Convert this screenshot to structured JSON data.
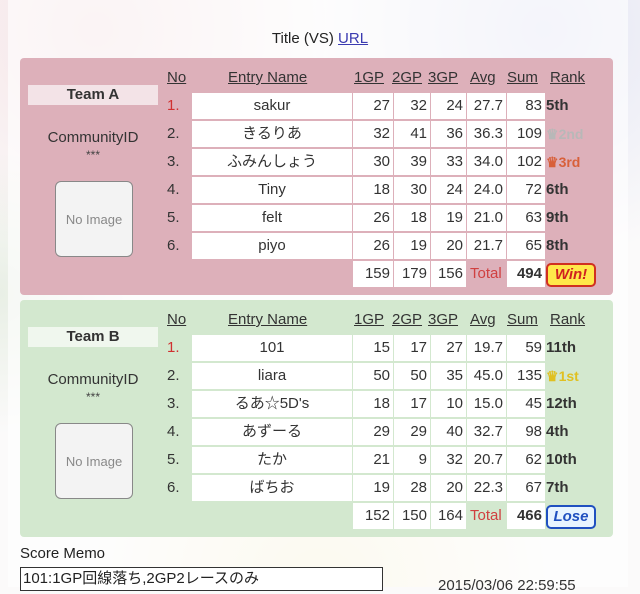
{
  "title": {
    "text": "Title (VS)",
    "link": "URL"
  },
  "headers": {
    "no": "No",
    "name": "Entry Name",
    "gp1": "1GP",
    "gp2": "2GP",
    "gp3": "3GP",
    "avg": "Avg",
    "sum": "Sum",
    "rank": "Rank"
  },
  "teams": [
    {
      "label": "Team A",
      "community": "CommunityID",
      "stars": "***",
      "image": "No Image",
      "color": "#ddb0ba",
      "rows": [
        {
          "no": "1.",
          "name": "sakur",
          "gp1": "27",
          "gp2": "32",
          "gp3": "24",
          "avg": "27.7",
          "sum": "83",
          "rank": "5th"
        },
        {
          "no": "2.",
          "name": "きるりあ",
          "gp1": "32",
          "gp2": "41",
          "gp3": "36",
          "avg": "36.3",
          "sum": "109",
          "rank": "2nd",
          "medal": "silver"
        },
        {
          "no": "3.",
          "name": "ふみんしょう",
          "gp1": "30",
          "gp2": "39",
          "gp3": "33",
          "avg": "34.0",
          "sum": "102",
          "rank": "3rd",
          "medal": "bronze"
        },
        {
          "no": "4.",
          "name": "Tiny",
          "gp1": "18",
          "gp2": "30",
          "gp3": "24",
          "avg": "24.0",
          "sum": "72",
          "rank": "6th"
        },
        {
          "no": "5.",
          "name": "felt",
          "gp1": "26",
          "gp2": "18",
          "gp3": "19",
          "avg": "21.0",
          "sum": "63",
          "rank": "9th"
        },
        {
          "no": "6.",
          "name": "piyo",
          "gp1": "26",
          "gp2": "19",
          "gp3": "20",
          "avg": "21.7",
          "sum": "65",
          "rank": "8th"
        }
      ],
      "totals": {
        "gp1": "159",
        "gp2": "179",
        "gp3": "156",
        "label": "Total",
        "sum": "494",
        "result": "Win!",
        "result_type": "win"
      }
    },
    {
      "label": "Team B",
      "community": "CommunityID",
      "stars": "***",
      "image": "No Image",
      "color": "#d3e8cf",
      "rows": [
        {
          "no": "1.",
          "name": "101",
          "gp1": "15",
          "gp2": "17",
          "gp3": "27",
          "avg": "19.7",
          "sum": "59",
          "rank": "11th"
        },
        {
          "no": "2.",
          "name": "liara",
          "gp1": "50",
          "gp2": "50",
          "gp3": "35",
          "avg": "45.0",
          "sum": "135",
          "rank": "1st",
          "medal": "gold"
        },
        {
          "no": "3.",
          "name": "るあ☆5D's",
          "gp1": "18",
          "gp2": "17",
          "gp3": "10",
          "avg": "15.0",
          "sum": "45",
          "rank": "12th"
        },
        {
          "no": "4.",
          "name": "あずーる",
          "gp1": "29",
          "gp2": "29",
          "gp3": "40",
          "avg": "32.7",
          "sum": "98",
          "rank": "4th"
        },
        {
          "no": "5.",
          "name": "たか",
          "gp1": "21",
          "gp2": "9",
          "gp3": "32",
          "avg": "20.7",
          "sum": "62",
          "rank": "10th"
        },
        {
          "no": "6.",
          "name": "ばちお",
          "gp1": "19",
          "gp2": "28",
          "gp3": "20",
          "avg": "22.3",
          "sum": "67",
          "rank": "7th"
        }
      ],
      "totals": {
        "gp1": "152",
        "gp2": "150",
        "gp3": "164",
        "label": "Total",
        "sum": "466",
        "result": "Lose",
        "result_type": "lose"
      }
    }
  ],
  "memo": {
    "label": "Score Memo",
    "value": "101:1GP回線落ち,2GP2レースのみ",
    "timestamp": "2015/03/06 22:59:55"
  }
}
